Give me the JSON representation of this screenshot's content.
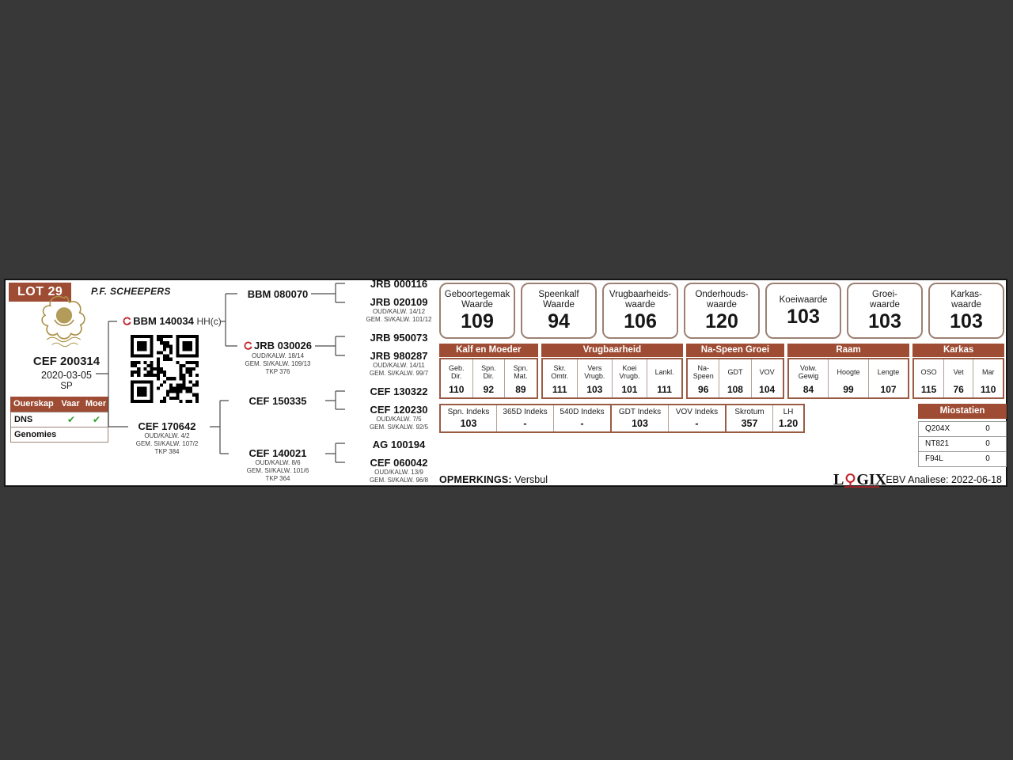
{
  "lot": {
    "label": "LOT 29"
  },
  "owner": "P.F. SCHEEPERS",
  "animal": {
    "id": "CEF 200314",
    "birth_date": "2020-03-05",
    "code": "SP"
  },
  "parentage": {
    "headers": [
      "Ouerskap",
      "Vaar",
      "Moer"
    ],
    "rows": [
      {
        "label": "DNS",
        "vaar": "✔",
        "moer": "✔"
      },
      {
        "label": "Genomies",
        "vaar": "",
        "moer": ""
      }
    ]
  },
  "pedigree": {
    "sire": {
      "id": "BBM 140034",
      "suffix": "HH(c)"
    },
    "dam": {
      "id": "CEF 170642",
      "lines": [
        "OUD/KALW. 4/2",
        "GEM. SI/KALW. 107/2",
        "TKP 384"
      ]
    },
    "sire_sire": {
      "id": "BBM 080070"
    },
    "sire_dam": {
      "id": "JRB 030026",
      "lines": [
        "OUD/KALW. 18/14",
        "GEM. SI/KALW. 109/13",
        "TKP 376"
      ]
    },
    "dam_sire": {
      "id": "CEF 150335"
    },
    "dam_dam": {
      "id": "CEF 140021",
      "lines": [
        "OUD/KALW. 8/6",
        "GEM. SI/KALW. 101/6",
        "TKP 364"
      ]
    },
    "sire_sire_sire": {
      "id": "JRB 000116"
    },
    "sire_sire_dam": {
      "id": "JRB 020109",
      "lines": [
        "OUD/KALW. 14/12",
        "GEM. SI/KALW. 101/12"
      ]
    },
    "sire_dam_sire": {
      "id": "JRB 950073"
    },
    "sire_dam_dam": {
      "id": "JRB 980287",
      "lines": [
        "OUD/KALW. 14/11",
        "GEM. SI/KALW. 99/7"
      ]
    },
    "dam_sire_sire": {
      "id": "CEF 130322"
    },
    "dam_sire_dam": {
      "id": "CEF 120230",
      "lines": [
        "OUD/KALW. 7/5",
        "GEM. SI/KALW. 92/5"
      ]
    },
    "dam_dam_sire": {
      "id": "AG 100194"
    },
    "dam_dam_dam": {
      "id": "CEF 060042",
      "lines": [
        "OUD/KALW. 13/9",
        "GEM. SI/KALW. 96/8"
      ]
    }
  },
  "ebv_boxes": [
    {
      "title": "Geboortegemak\nWaarde",
      "value": "109"
    },
    {
      "title": "Speenkalf\nWaarde",
      "value": "94"
    },
    {
      "title": "Vrugbaarheids-\nwaarde",
      "value": "106"
    },
    {
      "title": "Onderhouds-\nwaarde",
      "value": "120"
    },
    {
      "title": "Koeiwaarde",
      "value": "103"
    },
    {
      "title": "Groei-\nwaarde",
      "value": "103"
    },
    {
      "title": "Karkas-\nwaarde",
      "value": "103"
    }
  ],
  "stat_groups": [
    {
      "name": "Kalf en Moeder",
      "cols": [
        {
          "label": "Geb.\nDir.",
          "value": "110"
        },
        {
          "label": "Spn.\nDir.",
          "value": "92"
        },
        {
          "label": "Spn.\nMat.",
          "value": "89"
        }
      ]
    },
    {
      "name": "Vrugbaarheid",
      "cols": [
        {
          "label": "Skr.\nOmtr.",
          "value": "111"
        },
        {
          "label": "Vers\nVrugb.",
          "value": "103"
        },
        {
          "label": "Koei\nVrugb.",
          "value": "101"
        },
        {
          "label": "Lankl.",
          "value": "111"
        }
      ]
    },
    {
      "name": "Na-Speen Groei",
      "cols": [
        {
          "label": "Na-\nSpeen",
          "value": "96"
        },
        {
          "label": "GDT",
          "value": "108"
        },
        {
          "label": "VOV",
          "value": "104"
        }
      ]
    },
    {
      "name": "Raam",
      "cols": [
        {
          "label": "Volw.\nGewig",
          "value": "84"
        },
        {
          "label": "Hoogte",
          "value": "99"
        },
        {
          "label": "Lengte",
          "value": "107"
        }
      ]
    },
    {
      "name": "Karkas",
      "cols": [
        {
          "label": "OSO",
          "value": "115"
        },
        {
          "label": "Vet",
          "value": "76"
        },
        {
          "label": "Mar",
          "value": "110"
        }
      ]
    }
  ],
  "index_table": [
    {
      "label": "Spn. Indeks",
      "value": "103"
    },
    {
      "label": "365D Indeks",
      "value": "-"
    },
    {
      "label": "540D Indeks",
      "value": "-"
    },
    {
      "label": "GDT Indeks",
      "value": "103"
    },
    {
      "label": "VOV Indeks",
      "value": "-"
    },
    {
      "label": "Skrotum",
      "value": "357"
    },
    {
      "label": "LH",
      "value": "1.20"
    }
  ],
  "miostatien": {
    "title": "Miostatien",
    "rows": [
      {
        "label": "Q204X",
        "value": "0"
      },
      {
        "label": "NT821",
        "value": "0"
      },
      {
        "label": "F94L",
        "value": "0"
      }
    ]
  },
  "remarks": {
    "label": "OPMERKINGS:",
    "value": "Versbul"
  },
  "footer": {
    "logix_l": "L",
    "logix_gix": "GIX",
    "analysis": "EBV Analiese: 2022-06-18"
  },
  "colors": {
    "brown": "#9E4C33",
    "table_border": "#9A5B45",
    "box_border": "#9C8173",
    "green": "#2BA02B",
    "red": "#C4232B",
    "gold": "#AB9148",
    "background": "#383838"
  }
}
